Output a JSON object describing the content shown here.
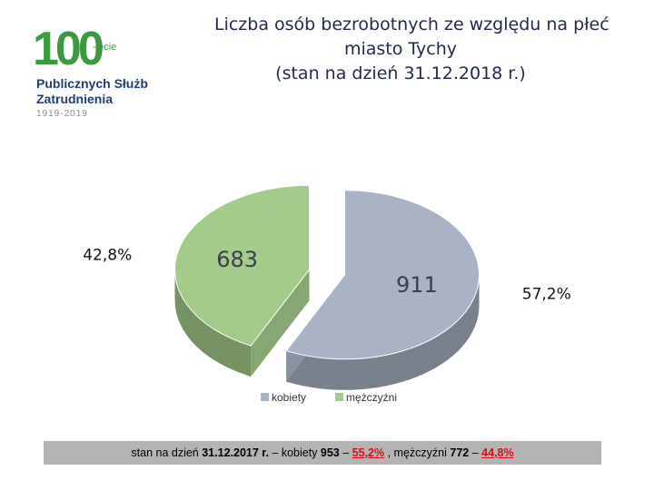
{
  "logo": {
    "big": "100",
    "suffix": "-lecie",
    "line1": "Publicznych Służb",
    "line2": "Zatrudnienia",
    "years": "1919-2019"
  },
  "title": {
    "line1": "Liczba osób bezrobotnych ze względu na płeć",
    "line2": "miasto Tychy",
    "line3": "(stan na dzień 31.12.2018 r.)"
  },
  "chart_data": {
    "type": "pie",
    "title": "Liczba osób bezrobotnych ze względu na płeć miasto Tychy (stan na dzień 31.12.2018 r.)",
    "categories": [
      "kobiety",
      "mężczyźni"
    ],
    "values": [
      911,
      683
    ],
    "value_labels": [
      "911",
      "683"
    ],
    "percent_labels": [
      "57,2%",
      "42,8%"
    ],
    "colors": [
      "#a9b3c5",
      "#a3cc8a"
    ],
    "legend_position": "bottom"
  },
  "note": {
    "prefix": "stan na dzień ",
    "date": "31.12.2017 r.",
    "women_text": " – kobiety ",
    "women_count": "953",
    "dash1": " – ",
    "women_pct": "55,2%",
    "sep": " , mężczyźni ",
    "men_count": "772",
    "dash2": " – ",
    "men_pct": "44,8%"
  }
}
